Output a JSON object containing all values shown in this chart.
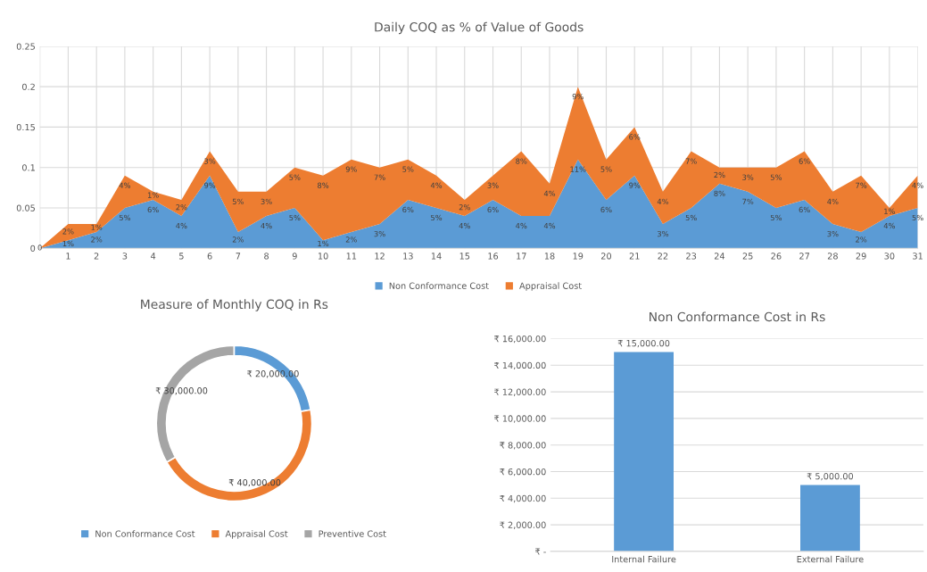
{
  "chart_data": [
    {
      "type": "area",
      "stacked": true,
      "title": "Daily COQ as % of Value of Goods",
      "categories": [
        null,
        "1",
        "2",
        "3",
        "4",
        "5",
        "6",
        "7",
        "8",
        "9",
        "10",
        "11",
        "12",
        "13",
        "14",
        "15",
        "16",
        "17",
        "18",
        "19",
        "20",
        "21",
        "22",
        "23",
        "24",
        "25",
        "26",
        "27",
        "28",
        "29",
        "30",
        "31"
      ],
      "series": [
        {
          "name": "Non Conformance Cost",
          "color": "#5b9bd5",
          "values": [
            0,
            0.01,
            0.02,
            0.05,
            0.06,
            0.04,
            0.09,
            0.02,
            0.04,
            0.05,
            0.01,
            0.02,
            0.03,
            0.06,
            0.05,
            0.04,
            0.06,
            0.04,
            0.04,
            0.11,
            0.06,
            0.09,
            0.03,
            0.05,
            0.08,
            0.07,
            0.05,
            0.06,
            0.03,
            0.02,
            0.04,
            0.05
          ],
          "value_labels": [
            "0",
            "1%",
            "2%",
            "5%",
            "6%",
            "4%",
            "9%",
            "2%",
            "4%",
            "5%",
            "1%",
            "2%",
            "3%",
            "6%",
            "5%",
            "4%",
            "6%",
            "4%",
            "4%",
            "11%",
            "6%",
            "9%",
            "3%",
            "5%",
            "8%",
            "7%",
            "5%",
            "6%",
            "3%",
            "2%",
            "4%",
            "5%"
          ]
        },
        {
          "name": "Appraisal Cost",
          "color": "#ed7d31",
          "values": [
            0,
            0.02,
            0.01,
            0.04,
            0.01,
            0.02,
            0.03,
            0.05,
            0.03,
            0.05,
            0.08,
            0.09,
            0.07,
            0.05,
            0.04,
            0.02,
            0.03,
            0.08,
            0.04,
            0.09,
            0.05,
            0.06,
            0.04,
            0.07,
            0.02,
            0.03,
            0.05,
            0.06,
            0.04,
            0.07,
            0.01,
            0.04
          ],
          "value_labels": [
            null,
            "2%",
            "1%",
            "4%",
            "1%",
            "2%",
            "3%",
            "5%",
            "3%",
            "5%",
            "8%",
            "9%",
            "7%",
            "5%",
            "4%",
            "2%",
            "3%",
            "8%",
            "4%",
            "9%",
            "5%",
            "6%",
            "4%",
            "7%",
            "2%",
            "3%",
            "5%",
            "6%",
            "4%",
            "7%",
            "1%",
            "4%"
          ]
        }
      ],
      "ylim": [
        0,
        0.25
      ],
      "yticks": [
        0,
        0.05,
        0.1,
        0.15,
        0.2,
        0.25
      ],
      "grid": true,
      "legend": "bottom"
    },
    {
      "type": "donut",
      "title": "Measure of Monthly COQ in Rs",
      "categories": [
        "Non Conformance Cost",
        "Appraisal Cost",
        "Preventive Cost"
      ],
      "values": [
        20000,
        40000,
        30000
      ],
      "colors": [
        "#5b9bd5",
        "#ed7d31",
        "#a5a5a5"
      ],
      "value_labels": [
        "₹ 20,000.00",
        "₹ 40,000.00",
        "₹ 30,000.00"
      ],
      "legend": "bottom"
    },
    {
      "type": "bar",
      "title": "Non Conformance Cost in Rs",
      "categories": [
        "Internal Failure",
        "External Failure"
      ],
      "values": [
        15000,
        5000
      ],
      "color": "#5b9bd5",
      "value_labels": [
        "₹ 15,000.00",
        "₹ 5,000.00"
      ],
      "ylim": [
        0,
        16000
      ],
      "yticks": [
        {
          "value": 0,
          "label": "₹ -"
        },
        {
          "value": 2000,
          "label": "₹ 2,000.00"
        },
        {
          "value": 4000,
          "label": "₹ 4,000.00"
        },
        {
          "value": 6000,
          "label": "₹ 6,000.00"
        },
        {
          "value": 8000,
          "label": "₹ 8,000.00"
        },
        {
          "value": 10000,
          "label": "₹ 10,000.00"
        },
        {
          "value": 12000,
          "label": "₹ 12,000.00"
        },
        {
          "value": 14000,
          "label": "₹ 14,000.00"
        },
        {
          "value": 16000,
          "label": "₹ 16,000.00"
        }
      ],
      "grid": "y"
    }
  ]
}
